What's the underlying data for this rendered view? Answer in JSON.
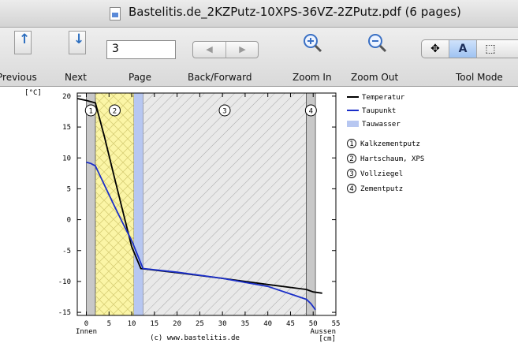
{
  "window": {
    "title": "Bastelitis.de_2KZPutz-10XPS-36VZ-2ZPutz.pdf (6 pages)"
  },
  "toolbar": {
    "previous_label": "Previous",
    "next_label": "Next",
    "page_label": "Page",
    "page_value": "3",
    "backforward_label": "Back/Forward",
    "zoomin_label": "Zoom In",
    "zoomout_label": "Zoom Out",
    "toolmode_label": "Tool Mode",
    "toolmode_selected": "A"
  },
  "chart_data": {
    "type": "line",
    "y_unit": "[°C]",
    "x_unit": "[cm]",
    "x_left_label": "Innen",
    "x_right_label": "Aussen",
    "footer": "(c) www.bastelitis.de",
    "xlim": [
      -2,
      55
    ],
    "ylim": [
      -15.5,
      20.5
    ],
    "x_ticks": [
      0,
      5,
      10,
      15,
      20,
      25,
      30,
      35,
      40,
      45,
      50,
      55
    ],
    "y_ticks": [
      20,
      15,
      10,
      5,
      0,
      -5,
      -10,
      -15
    ],
    "layers": [
      {
        "number": "1",
        "name": "Kalkzementputz",
        "x0": 0,
        "x1": 2,
        "fill": "#c8c8c8"
      },
      {
        "number": "2",
        "name": "Hartschaum, XPS",
        "x0": 2,
        "x1": 10.5,
        "fill": "#fbf5a6"
      },
      {
        "number": "3",
        "name": "Vollziegel",
        "x0": 12.5,
        "x1": 48.5,
        "fill": "#e9e9e9"
      },
      {
        "number": "4",
        "name": "Zementputz",
        "x0": 48.5,
        "x1": 50.5,
        "fill": "#c8c8c8"
      }
    ],
    "condensation_zone": {
      "x0": 10.5,
      "x1": 12.5,
      "fill": "#b7c7f1"
    },
    "series": [
      {
        "name": "Temperatur",
        "color": "#000000",
        "points": [
          [
            -2,
            19.6
          ],
          [
            0,
            19.3
          ],
          [
            2,
            18.9
          ],
          [
            4,
            13.4
          ],
          [
            6,
            7.4
          ],
          [
            8,
            1.5
          ],
          [
            10,
            -4.4
          ],
          [
            12,
            -7.9
          ],
          [
            20,
            -8.6
          ],
          [
            30,
            -9.5
          ],
          [
            40,
            -10.5
          ],
          [
            48.5,
            -11.3
          ],
          [
            50,
            -11.7
          ],
          [
            52,
            -11.9
          ]
        ]
      },
      {
        "name": "Taupunkt",
        "color": "#1a2ec8",
        "points": [
          [
            0,
            9.3
          ],
          [
            1,
            9.1
          ],
          [
            2,
            8.7
          ],
          [
            4,
            5.6
          ],
          [
            6,
            2.5
          ],
          [
            8,
            -0.5
          ],
          [
            10,
            -3.4
          ],
          [
            11,
            -5.2
          ],
          [
            12.5,
            -7.9
          ],
          [
            20,
            -8.5
          ],
          [
            30,
            -9.5
          ],
          [
            40,
            -10.8
          ],
          [
            48.5,
            -12.9
          ],
          [
            49.5,
            -13.6
          ],
          [
            50.5,
            -14.6
          ]
        ]
      }
    ],
    "legend_extra": {
      "name": "Tauwasser",
      "color": "#b7c7f1"
    }
  }
}
